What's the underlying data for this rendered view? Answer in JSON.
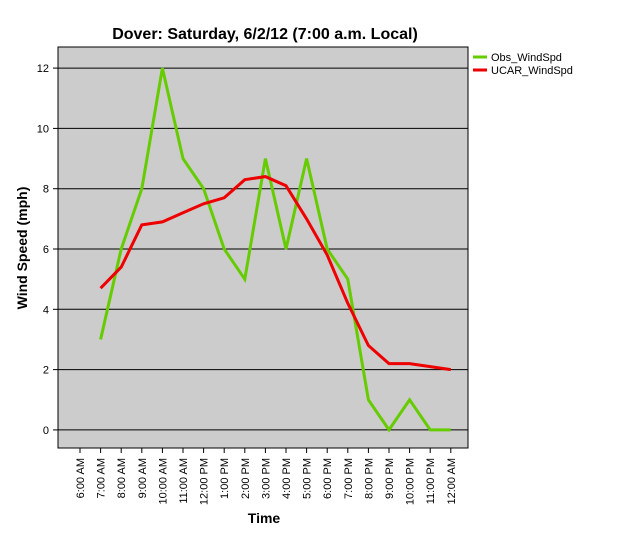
{
  "chart_data": {
    "type": "line",
    "title": "Dover: Saturday, 6/2/12 (7:00 a.m. Local)",
    "xlabel": "Time",
    "ylabel": "Wind Speed (mph)",
    "categories": [
      "6:00 AM",
      "7:00 AM",
      "8:00 AM",
      "9:00 AM",
      "10:00 AM",
      "11:00 AM",
      "12:00 PM",
      "1:00 PM",
      "2:00 PM",
      "3:00 PM",
      "4:00 PM",
      "5:00 PM",
      "6:00 PM",
      "7:00 PM",
      "8:00 PM",
      "9:00 PM",
      "10:00 PM",
      "11:00 PM",
      "12:00 AM"
    ],
    "yticks": [
      "0",
      "2",
      "4",
      "6",
      "8",
      "10",
      "12"
    ],
    "ylim": [
      -0.6,
      12.7
    ],
    "grid": "horizontal",
    "legend_position": "right-top",
    "background": "#cccccc",
    "series": [
      {
        "name": "Obs_WindSpd",
        "color": "#66cc00",
        "values": [
          null,
          3,
          6,
          8,
          12,
          9,
          8,
          6,
          5,
          9,
          6,
          9,
          6,
          5,
          1,
          0,
          1,
          0,
          0
        ]
      },
      {
        "name": "UCAR_WindSpd",
        "color": "#ee0000",
        "values": [
          null,
          4.7,
          5.4,
          6.8,
          6.9,
          7.2,
          7.5,
          7.7,
          8.3,
          8.4,
          8.1,
          7.0,
          5.8,
          4.2,
          2.8,
          2.2,
          2.2,
          2.1,
          2.0
        ]
      }
    ]
  }
}
